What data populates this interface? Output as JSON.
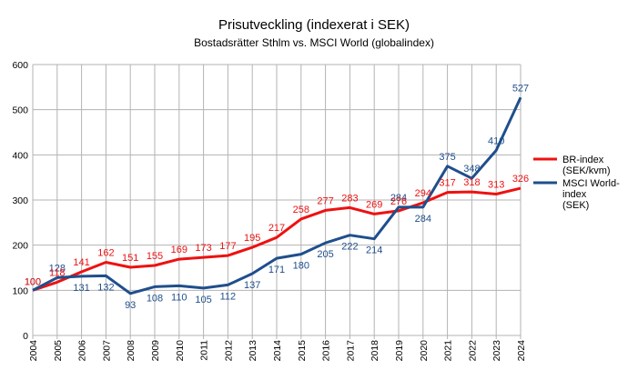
{
  "chart_data": {
    "type": "line",
    "title": "Prisutveckling (indexerat i SEK)",
    "subtitle": "Bostadsrätter Sthlm vs. MSCI World (globalindex)",
    "xlabel": "",
    "ylabel": "",
    "ylim": [
      0,
      600
    ],
    "yticks": [
      "0",
      "100",
      "200",
      "300",
      "400",
      "500",
      "600"
    ],
    "grid": true,
    "legend_position": "right",
    "categories": [
      "2004",
      "2005",
      "2006",
      "2007",
      "2008",
      "2009",
      "2010",
      "2011",
      "2012",
      "2013",
      "2014",
      "2015",
      "2016",
      "2017",
      "2018",
      "2019",
      "2020",
      "2021",
      "2022",
      "2023",
      "2024"
    ],
    "series": [
      {
        "name": "BR-index (SEK/kvm)",
        "legend_lines": [
          "BR-index",
          "(SEK/kvm)"
        ],
        "color": "#ee1111",
        "values": [
          100,
          118,
          141,
          162,
          151,
          155,
          169,
          173,
          177,
          195,
          217,
          258,
          277,
          283,
          269,
          276,
          294,
          317,
          318,
          313,
          326
        ],
        "labels": [
          "100",
          "118",
          "141",
          "162",
          "151",
          "155",
          "169",
          "173",
          "177",
          "195",
          "217",
          "258",
          "277",
          "283",
          "269",
          "276",
          "294",
          "317",
          "318",
          "313",
          "326"
        ]
      },
      {
        "name": "MSCI World-index (SEK)",
        "legend_lines": [
          "MSCI World-",
          "index",
          "(SEK)"
        ],
        "color": "#1f4e8c",
        "values": [
          100,
          128,
          131,
          132,
          93,
          108,
          110,
          105,
          112,
          137,
          171,
          180,
          205,
          222,
          214,
          284,
          284,
          375,
          348,
          410,
          527
        ],
        "labels": [
          "100",
          "128",
          "131",
          "132",
          "93",
          "108",
          "110",
          "105",
          "112",
          "137",
          "171",
          "180",
          "205",
          "222",
          "214",
          "284",
          "284",
          "375",
          "348",
          "410",
          "527"
        ]
      }
    ]
  }
}
